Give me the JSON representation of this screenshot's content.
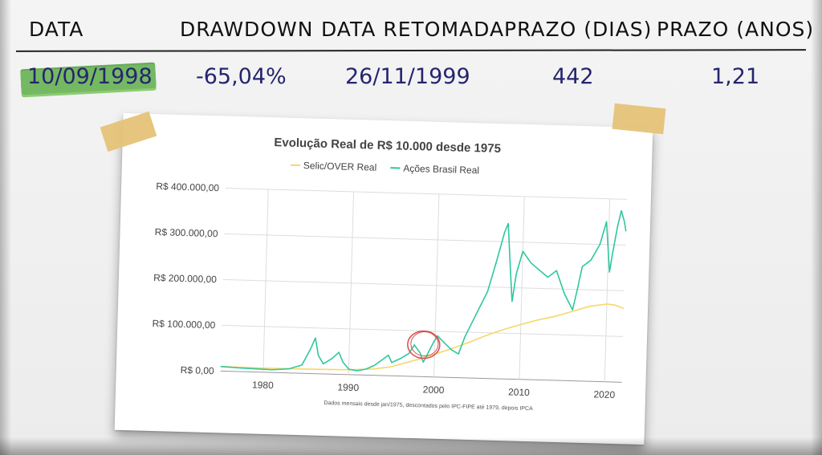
{
  "table": {
    "headers": [
      "DATA",
      "DRAWDOWN",
      "DATA RETOMADA",
      "PRAZO (DIAS)",
      "PRAZO (ANOS)"
    ],
    "values": [
      "10/09/1998",
      "-65,04%",
      "26/11/1999",
      "442",
      "1,21"
    ],
    "highlight_color": "#5fae4a"
  },
  "chart_data": {
    "type": "line",
    "title": "Evolução Real de R$ 10.000 desde 1975",
    "footnote": "Dados mensais desde jan/1975, descontados pelo IPC-FIPE até 1979, depois IPCA",
    "legend_position": "top",
    "xlim": [
      1975,
      2022
    ],
    "ylim": [
      0,
      400000
    ],
    "x_ticks": [
      1980,
      1990,
      2000,
      2010,
      2020
    ],
    "x_tick_labels": [
      "1980",
      "1990",
      "2000",
      "2010",
      "2020"
    ],
    "y_ticks": [
      0,
      100000,
      200000,
      300000,
      400000
    ],
    "y_tick_labels": [
      "R$ 0,00",
      "R$ 100.000,00",
      "R$ 200.000,00",
      "R$ 300.000,00",
      "R$ 400.000,00"
    ],
    "grid": true,
    "annotation": {
      "type": "circle",
      "x": 1998.7,
      "y": 70000,
      "color": "#d94f4f"
    },
    "series": [
      {
        "name": "Selic/OVER Real",
        "color": "#f5d76a",
        "x": [
          1975,
          1980,
          1985,
          1990,
          1993,
          1995,
          1998,
          2000,
          2002,
          2004,
          2006,
          2008,
          2010,
          2012,
          2014,
          2016,
          2018,
          2020,
          2021,
          2022
        ],
        "y": [
          10000,
          9000,
          9500,
          10500,
          14000,
          20000,
          37000,
          50000,
          63000,
          78000,
          94000,
          108000,
          120000,
          131000,
          140000,
          152000,
          164000,
          170000,
          168000,
          161000
        ]
      },
      {
        "name": "Ações Brasil Real",
        "color": "#2ec79e",
        "x": [
          1975,
          1977,
          1979,
          1981,
          1983,
          1984.5,
          1985.5,
          1986.0,
          1986.4,
          1987,
          1988,
          1988.8,
          1989.3,
          1990,
          1991,
          1992,
          1993,
          1994,
          1994.6,
          1995,
          1996,
          1997,
          1997.6,
          1998.3,
          1998.7,
          1999,
          1999.9,
          2000.3,
          2001,
          2002,
          2002.8,
          2003.5,
          2004,
          2005,
          2006,
          2007,
          2007.8,
          2008.2,
          2008.6,
          2008.9,
          2009.3,
          2010,
          2011,
          2012,
          2013,
          2014,
          2015,
          2016.0,
          2016.5,
          2017,
          2018,
          2019,
          2019.7,
          2020.2,
          2020.5,
          2021,
          2021.4,
          2021.8,
          2022
        ],
        "y": [
          10000,
          8000,
          7000,
          6000,
          9000,
          18000,
          55000,
          78000,
          40000,
          22000,
          34000,
          48000,
          27000,
          12000,
          9000,
          13000,
          22000,
          36000,
          45000,
          29000,
          38000,
          50000,
          69000,
          52000,
          32000,
          43000,
          78000,
          90000,
          77000,
          60000,
          52000,
          90000,
          110000,
          150000,
          190000,
          260000,
          320000,
          340000,
          240000,
          170000,
          230000,
          280000,
          255000,
          240000,
          225000,
          240000,
          190000,
          155000,
          200000,
          250000,
          265000,
          300000,
          350000,
          240000,
          280000,
          340000,
          375000,
          350000,
          330000
        ]
      }
    ]
  }
}
